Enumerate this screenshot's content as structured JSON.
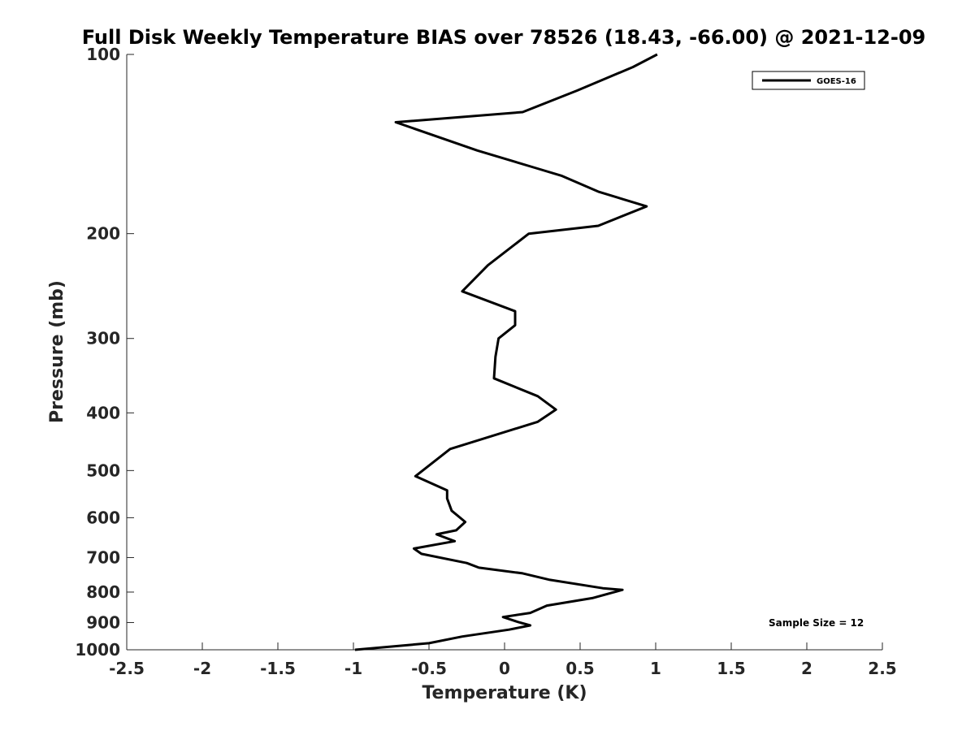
{
  "chart_data": {
    "type": "line",
    "title": "Full Disk Weekly Temperature BIAS over 78526 (18.43, -66.00) @ 2021-12-09",
    "xlabel": "Temperature (K)",
    "ylabel": "Pressure (mb)",
    "xlim": [
      -2.5,
      2.5
    ],
    "ylim": [
      100,
      1000
    ],
    "y_scale": "log",
    "y_reversed": true,
    "x_ticks": [
      "-2.5",
      "-2",
      "-1.5",
      "-1",
      "-0.5",
      "0",
      "0.5",
      "1",
      "1.5",
      "2",
      "2.5"
    ],
    "x_tick_values": [
      -2.5,
      -2,
      -1.5,
      -1,
      -0.5,
      0,
      0.5,
      1,
      1.5,
      2,
      2.5
    ],
    "y_ticks": [
      "100",
      "200",
      "300",
      "400",
      "500",
      "600",
      "700",
      "800",
      "900",
      "1000"
    ],
    "y_tick_values": [
      100,
      200,
      300,
      400,
      500,
      600,
      700,
      800,
      900,
      1000
    ],
    "grid": false,
    "legend_position": "top-right",
    "annotation": "Sample Size = 12",
    "series": [
      {
        "name": "GOES-16",
        "color": "#000000",
        "points": [
          [
            1.01,
            100
          ],
          [
            0.85,
            105
          ],
          [
            0.48,
            115
          ],
          [
            0.12,
            125
          ],
          [
            -0.72,
            130
          ],
          [
            -0.18,
            145
          ],
          [
            0.2,
            155
          ],
          [
            0.38,
            160
          ],
          [
            0.62,
            170
          ],
          [
            0.94,
            180
          ],
          [
            0.62,
            194
          ],
          [
            0.16,
            200
          ],
          [
            -0.11,
            226
          ],
          [
            -0.28,
            250
          ],
          [
            0.07,
            270
          ],
          [
            0.07,
            285
          ],
          [
            -0.04,
            300
          ],
          [
            -0.06,
            322
          ],
          [
            -0.07,
            350
          ],
          [
            0.22,
            375
          ],
          [
            0.34,
            395
          ],
          [
            0.22,
            414
          ],
          [
            -0.36,
            460
          ],
          [
            -0.59,
            511
          ],
          [
            -0.38,
            540
          ],
          [
            -0.38,
            557
          ],
          [
            -0.35,
            584
          ],
          [
            -0.26,
            610
          ],
          [
            -0.32,
            630
          ],
          [
            -0.45,
            640
          ],
          [
            -0.33,
            657
          ],
          [
            -0.6,
            676
          ],
          [
            -0.55,
            690
          ],
          [
            -0.25,
            715
          ],
          [
            -0.17,
            728
          ],
          [
            0.12,
            744
          ],
          [
            0.3,
            763
          ],
          [
            0.65,
            788
          ],
          [
            0.78,
            793
          ],
          [
            0.58,
            819
          ],
          [
            0.28,
            843
          ],
          [
            0.17,
            867
          ],
          [
            -0.01,
            881
          ],
          [
            0.09,
            898
          ],
          [
            0.17,
            910
          ],
          [
            0.03,
            925
          ],
          [
            -0.28,
            950
          ],
          [
            -0.5,
            975
          ],
          [
            -0.99,
            1000
          ]
        ]
      }
    ]
  }
}
